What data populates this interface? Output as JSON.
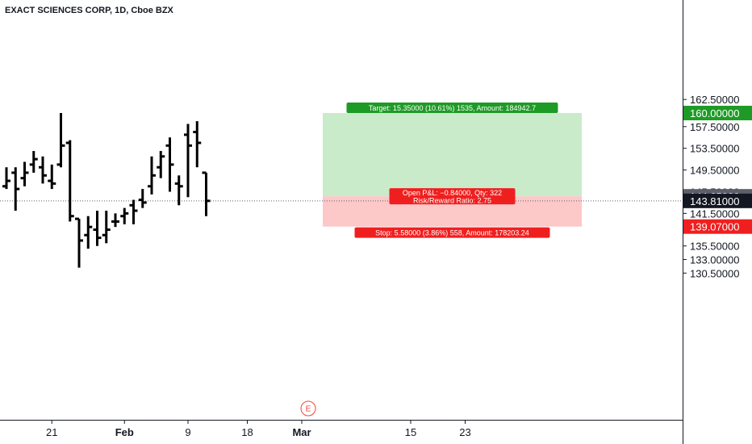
{
  "header": {
    "symbol": "EXACT SCIENCES CORP",
    "interval": "1D",
    "exchange": "Cboe BZX",
    "separator": ", "
  },
  "chart_data": {
    "type": "ohlc",
    "price_axis": {
      "ticks": [
        "162.50000",
        "157.50000",
        "153.50000",
        "149.50000",
        "145.50000",
        "141.50000",
        "138.50000",
        "135.50000",
        "133.00000",
        "130.50000"
      ],
      "tick_values": [
        162.5,
        157.5,
        153.5,
        149.5,
        145.5,
        141.5,
        138.5,
        135.5,
        133.0,
        130.5
      ]
    },
    "time_axis": {
      "labels": [
        {
          "text": "21",
          "bold": false,
          "index": 5
        },
        {
          "text": "Feb",
          "bold": true,
          "index": 13
        },
        {
          "text": "9",
          "bold": false,
          "index": 20
        },
        {
          "text": "18",
          "bold": false,
          "index": 26
        },
        {
          "text": "Mar",
          "bold": true,
          "index": 32
        },
        {
          "text": "15",
          "bold": false,
          "index": 44
        },
        {
          "text": "23",
          "bold": false,
          "index": 50
        }
      ]
    },
    "bars": [
      {
        "o": 146.5,
        "h": 150.0,
        "l": 146.0,
        "c": 147.5
      },
      {
        "o": 149.0,
        "h": 150.0,
        "l": 142.0,
        "c": 146.0
      },
      {
        "o": 148.0,
        "h": 151.0,
        "l": 146.5,
        "c": 149.0
      },
      {
        "o": 150.5,
        "h": 153.0,
        "l": 149.0,
        "c": 151.5
      },
      {
        "o": 150.0,
        "h": 152.0,
        "l": 147.0,
        "c": 148.5
      },
      {
        "o": 147.5,
        "h": 150.5,
        "l": 146.0,
        "c": 147.0
      },
      {
        "o": 150.5,
        "h": 160.0,
        "l": 150.0,
        "c": 154.0
      },
      {
        "o": 154.5,
        "h": 155.0,
        "l": 140.0,
        "c": 141.0
      },
      {
        "o": 140.5,
        "h": 140.5,
        "l": 131.5,
        "c": 136.5
      },
      {
        "o": 137.5,
        "h": 141.0,
        "l": 135.0,
        "c": 139.0
      },
      {
        "o": 138.5,
        "h": 142.0,
        "l": 135.5,
        "c": 137.0
      },
      {
        "o": 137.5,
        "h": 142.0,
        "l": 136.0,
        "c": 138.5
      },
      {
        "o": 140.0,
        "h": 141.5,
        "l": 139.0,
        "c": 140.0
      },
      {
        "o": 141.0,
        "h": 142.5,
        "l": 139.5,
        "c": 141.5
      },
      {
        "o": 143.0,
        "h": 144.0,
        "l": 139.5,
        "c": 142.0
      },
      {
        "o": 144.0,
        "h": 146.0,
        "l": 142.5,
        "c": 143.5
      },
      {
        "o": 146.5,
        "h": 152.0,
        "l": 145.0,
        "c": 148.5
      },
      {
        "o": 150.0,
        "h": 153.0,
        "l": 148.0,
        "c": 152.0
      },
      {
        "o": 154.0,
        "h": 155.5,
        "l": 145.5,
        "c": 150.5
      },
      {
        "o": 147.0,
        "h": 148.5,
        "l": 143.0,
        "c": 146.5
      },
      {
        "o": 156.0,
        "h": 158.0,
        "l": 144.5,
        "c": 154.0
      },
      {
        "o": 156.5,
        "h": 158.5,
        "l": 150.0,
        "c": 154.5
      },
      {
        "o": 149.0,
        "h": 149.0,
        "l": 141.0,
        "c": 143.81
      }
    ],
    "current_price": 143.81,
    "position": {
      "type": "long",
      "entry": 144.65,
      "target": 160.0,
      "stop": 139.07,
      "target_label": "Target: 15.35000 (10.61%) 1535, Amount: 184942.7",
      "stop_label": "Stop: 5.58000 (3.86%) 558, Amount: 178203.24",
      "pnl_label": "Open P&L: −0.84000, Qty: 322",
      "rr_label": "Risk/Reward Ratio: 2.75",
      "target_price_label": "160.00000",
      "entry_price_label": "144.65000",
      "stop_price_label": "139.07000",
      "current_price_label": "143.81000"
    },
    "earnings_marker": {
      "text": "E",
      "index": 22
    }
  },
  "colors": {
    "bars": "#000000",
    "target_zone": "#c9ebc9",
    "stop_zone": "#fcc8c8",
    "target_tag": "#1e9b26",
    "stop_tag": "#f01f1f",
    "entry_tag": "#5d606b",
    "current_tag": "#131722",
    "earnings": "#f44336"
  }
}
